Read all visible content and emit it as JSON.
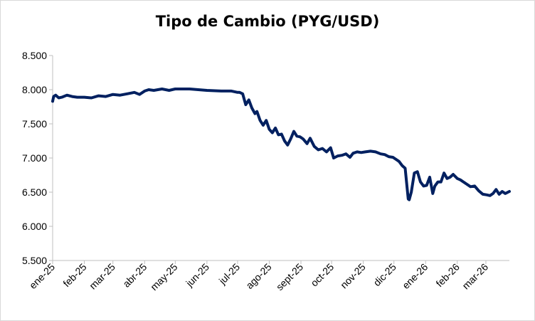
{
  "chart_data": {
    "type": "line",
    "title": "Tipo de Cambio (PYG/USD)",
    "xlabel": "",
    "ylabel": "",
    "ylim": [
      5500,
      8500
    ],
    "yticks": [
      5500,
      6000,
      6500,
      7000,
      7500,
      8000,
      8500
    ],
    "ytick_labels": [
      "5.500",
      "6.000",
      "6.500",
      "7.000",
      "7.500",
      "8.000",
      "8.500"
    ],
    "xlim": [
      "2025-01-01",
      "2026-03-24"
    ],
    "xticks": [
      "2025-01-01",
      "2025-02-01",
      "2025-03-01",
      "2025-04-01",
      "2025-05-01",
      "2025-06-01",
      "2025-07-01",
      "2025-08-01",
      "2025-09-01",
      "2025-10-01",
      "2025-11-01",
      "2025-12-01",
      "2026-01-01",
      "2026-02-01",
      "2026-03-01"
    ],
    "xtick_labels": [
      "ene-25",
      "feb-25",
      "mar-25",
      "abr-25",
      "may-25",
      "jun-25",
      "jul-25",
      "ago-25",
      "sept-25",
      "oct-25",
      "nov-25",
      "dic-25",
      "ene-26",
      "feb-26",
      "mar-26"
    ],
    "grid": false,
    "legend": "none",
    "line_color": "#002060",
    "series": [
      {
        "x": [
          "2025-01-01",
          "2025-01-02",
          "2025-01-04",
          "2025-01-07",
          "2025-01-10",
          "2025-01-15",
          "2025-01-20",
          "2025-01-25",
          "2025-02-01",
          "2025-02-08",
          "2025-02-15",
          "2025-02-22",
          "2025-03-01",
          "2025-03-08",
          "2025-03-15",
          "2025-03-22",
          "2025-03-27",
          "2025-04-01",
          "2025-04-05",
          "2025-04-10",
          "2025-04-18",
          "2025-04-25",
          "2025-05-01",
          "2025-05-15",
          "2025-06-01",
          "2025-06-15",
          "2025-06-25",
          "2025-07-01",
          "2025-07-03",
          "2025-07-06",
          "2025-07-09",
          "2025-07-12",
          "2025-07-15",
          "2025-07-18",
          "2025-07-20",
          "2025-07-23",
          "2025-07-26",
          "2025-07-29",
          "2025-08-01",
          "2025-08-04",
          "2025-08-07",
          "2025-08-10",
          "2025-08-13",
          "2025-08-16",
          "2025-08-19",
          "2025-08-22",
          "2025-08-25",
          "2025-08-28",
          "2025-08-31",
          "2025-09-03",
          "2025-09-07",
          "2025-09-10",
          "2025-09-14",
          "2025-09-18",
          "2025-09-22",
          "2025-09-26",
          "2025-09-30",
          "2025-10-03",
          "2025-10-07",
          "2025-10-11",
          "2025-10-15",
          "2025-10-19",
          "2025-10-22",
          "2025-10-26",
          "2025-10-30",
          "2025-11-03",
          "2025-11-08",
          "2025-11-13",
          "2025-11-18",
          "2025-11-22",
          "2025-11-26",
          "2025-11-30",
          "2025-12-03",
          "2025-12-06",
          "2025-12-09",
          "2025-12-12",
          "2025-12-15",
          "2025-12-16",
          "2025-12-18",
          "2025-12-21",
          "2025-12-24",
          "2025-12-27",
          "2025-12-30",
          "2026-01-02",
          "2026-01-05",
          "2026-01-08",
          "2026-01-10",
          "2026-01-13",
          "2026-01-16",
          "2026-01-19",
          "2026-01-22",
          "2026-01-25",
          "2026-01-28",
          "2026-02-01",
          "2026-02-04",
          "2026-02-07",
          "2026-02-10",
          "2026-02-14",
          "2026-02-18",
          "2026-02-22",
          "2026-02-26",
          "2026-03-02",
          "2026-03-05",
          "2026-03-08",
          "2026-03-11",
          "2026-03-14",
          "2026-03-17",
          "2026-03-20",
          "2026-03-24"
        ],
        "values": [
          7830,
          7900,
          7920,
          7880,
          7890,
          7920,
          7900,
          7890,
          7890,
          7880,
          7910,
          7900,
          7930,
          7920,
          7940,
          7960,
          7930,
          7980,
          8000,
          7990,
          8010,
          7990,
          8010,
          8010,
          7990,
          7980,
          7980,
          7960,
          7960,
          7940,
          7780,
          7850,
          7730,
          7650,
          7680,
          7550,
          7480,
          7550,
          7420,
          7370,
          7440,
          7340,
          7350,
          7250,
          7190,
          7280,
          7390,
          7320,
          7310,
          7280,
          7210,
          7290,
          7170,
          7120,
          7140,
          7090,
          7150,
          7000,
          7030,
          7040,
          7060,
          7010,
          7070,
          7090,
          7080,
          7090,
          7100,
          7090,
          7060,
          7050,
          7020,
          7010,
          6980,
          6950,
          6890,
          6850,
          6400,
          6390,
          6500,
          6780,
          6800,
          6650,
          6590,
          6600,
          6720,
          6480,
          6590,
          6650,
          6650,
          6780,
          6700,
          6720,
          6760,
          6700,
          6680,
          6650,
          6620,
          6580,
          6590,
          6520,
          6470,
          6460,
          6450,
          6480,
          6540,
          6470,
          6510,
          6480,
          6510
        ]
      }
    ]
  }
}
